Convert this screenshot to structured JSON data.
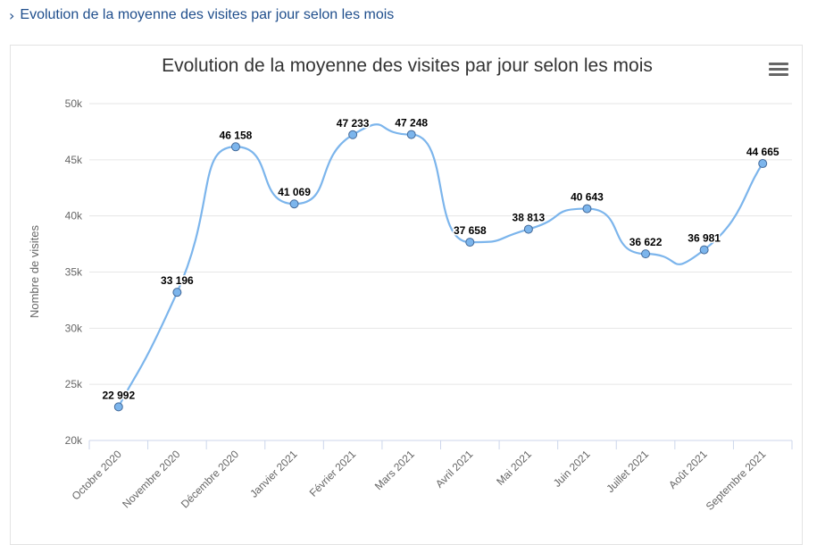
{
  "header": {
    "chevron_icon": "chevron-right-icon",
    "title": "Evolution de la moyenne des visites par jour selon les mois"
  },
  "menu": {
    "icon": "hamburger-menu-icon"
  },
  "colors": {
    "header_text": "#1f4e8c",
    "series": "#7cb5ec",
    "point_stroke": "#446a99",
    "grid": "#e6e6e6"
  },
  "chart_data": {
    "type": "line",
    "title": "Evolution de la moyenne des visites par jour selon les mois",
    "xlabel": "",
    "ylabel": "Nombre de visites",
    "categories": [
      "Octobre 2020",
      "Novembre 2020",
      "Décembre 2020",
      "Janvier 2021",
      "Février 2021",
      "Mars 2021",
      "Avril 2021",
      "Mai 2021",
      "Juin 2021",
      "Juillet 2021",
      "Août 2021",
      "Septembre 2021"
    ],
    "series": [
      {
        "values": [
          22992,
          33196,
          46158,
          41069,
          47233,
          47248,
          37658,
          38813,
          40643,
          36622,
          36981,
          44665
        ],
        "labels": [
          "22 992",
          "33 196",
          "46 158",
          "41 069",
          "47 233",
          "47 248",
          "37 658",
          "38 813",
          "40 643",
          "36 622",
          "36 981",
          "44 665"
        ]
      }
    ],
    "ylim": [
      20000,
      50000
    ],
    "yticks": [
      20000,
      25000,
      30000,
      35000,
      40000,
      45000,
      50000
    ],
    "ytick_labels": [
      "20k",
      "25k",
      "30k",
      "35k",
      "40k",
      "45k",
      "50k"
    ],
    "grid": true,
    "smooth": true,
    "legend": "none"
  }
}
